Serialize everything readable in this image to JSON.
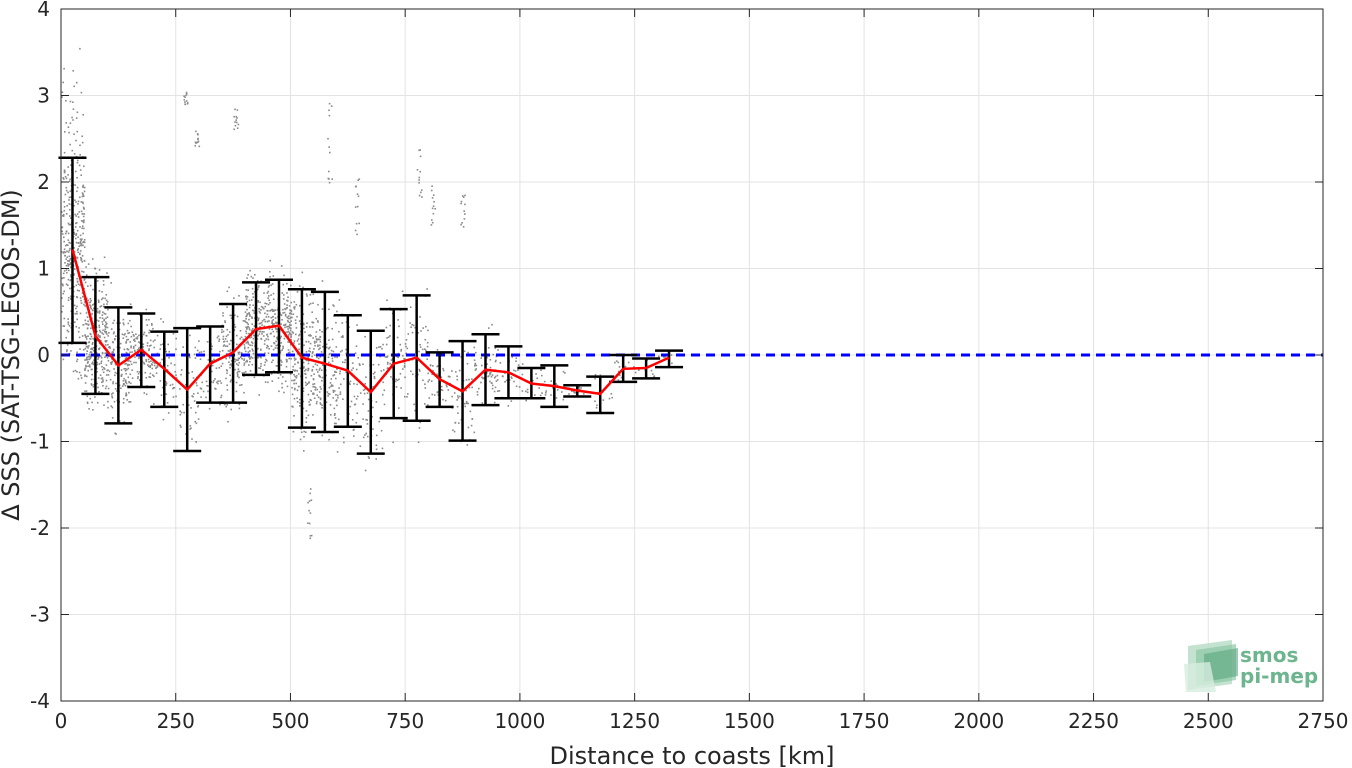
{
  "chart_data": {
    "type": "scatter",
    "xlabel": "Distance to coasts [km]",
    "ylabel": "Δ SSS (SAT-TSG-LEGOS-DM)",
    "xlim": [
      0,
      2750
    ],
    "ylim": [
      -4,
      4
    ],
    "x_ticks": [
      "0",
      "250",
      "500",
      "750",
      "1000",
      "1250",
      "1500",
      "1750",
      "2000",
      "2250",
      "2500",
      "2750"
    ],
    "y_ticks": [
      "-4",
      "-3",
      "-2",
      "-1",
      "0",
      "1",
      "2",
      "3",
      "4"
    ],
    "grid": true,
    "colors": {
      "scatter": "#7f7f7f",
      "mean_line": "#ff0000",
      "error_bars": "#000000",
      "zero_line": "#0000ff"
    },
    "zero_line": {
      "y": 0,
      "style": "dashed"
    },
    "binned_stats": {
      "x": [
        25,
        75,
        125,
        175,
        225,
        275,
        325,
        375,
        425,
        475,
        525,
        575,
        625,
        675,
        725,
        775,
        825,
        875,
        925,
        975,
        1025,
        1075,
        1125,
        1175,
        1225,
        1275,
        1325
      ],
      "mean": [
        1.22,
        0.22,
        -0.12,
        0.06,
        -0.16,
        -0.4,
        -0.1,
        0.03,
        0.3,
        0.34,
        -0.03,
        -0.1,
        -0.18,
        -0.43,
        -0.1,
        -0.03,
        -0.28,
        -0.42,
        -0.17,
        -0.2,
        -0.33,
        -0.36,
        -0.41,
        -0.45,
        -0.16,
        -0.15,
        -0.03
      ],
      "upper": [
        2.28,
        0.9,
        0.55,
        0.48,
        0.27,
        0.31,
        0.33,
        0.59,
        0.84,
        0.87,
        0.76,
        0.73,
        0.46,
        0.28,
        0.53,
        0.69,
        0.03,
        0.16,
        0.24,
        0.1,
        -0.15,
        -0.12,
        -0.35,
        -0.25,
        0.0,
        -0.04,
        0.05
      ],
      "lower": [
        0.14,
        -0.45,
        -0.79,
        -0.37,
        -0.6,
        -1.11,
        -0.55,
        -0.55,
        -0.23,
        -0.2,
        -0.84,
        -0.89,
        -0.83,
        -1.14,
        -0.73,
        -0.76,
        -0.6,
        -0.99,
        -0.58,
        -0.5,
        -0.5,
        -0.6,
        -0.48,
        -0.67,
        -0.31,
        -0.27,
        -0.14
      ]
    },
    "scatter_envelope": [
      {
        "x_range": [
          0,
          50
        ],
        "y_range": [
          -1.8,
          3.9
        ]
      },
      {
        "x_range": [
          50,
          100
        ],
        "y_range": [
          -1.6,
          2.2
        ]
      },
      {
        "x_range": [
          100,
          200
        ],
        "y_range": [
          -1.4,
          1.4
        ]
      },
      {
        "x_range": [
          200,
          300
        ],
        "y_range": [
          -1.2,
          3.0
        ]
      },
      {
        "x_range": [
          300,
          400
        ],
        "y_range": [
          -1.8,
          2.8
        ]
      },
      {
        "x_range": [
          400,
          500
        ],
        "y_range": [
          -0.6,
          1.8
        ]
      },
      {
        "x_range": [
          500,
          600
        ],
        "y_range": [
          -2.3,
          2.9
        ]
      },
      {
        "x_range": [
          600,
          700
        ],
        "y_range": [
          -1.4,
          2.0
        ]
      },
      {
        "x_range": [
          700,
          800
        ],
        "y_range": [
          -1.0,
          2.4
        ]
      },
      {
        "x_range": [
          800,
          900
        ],
        "y_range": [
          -1.2,
          2.0
        ]
      },
      {
        "x_range": [
          900,
          1000
        ],
        "y_range": [
          -0.8,
          0.9
        ]
      },
      {
        "x_range": [
          1000,
          1200
        ],
        "y_range": [
          -0.6,
          0.1
        ]
      },
      {
        "x_range": [
          1200,
          1350
        ],
        "y_range": [
          -0.3,
          0.15
        ]
      }
    ]
  },
  "watermark": {
    "line1": "smos",
    "line2": "pi-mep"
  }
}
